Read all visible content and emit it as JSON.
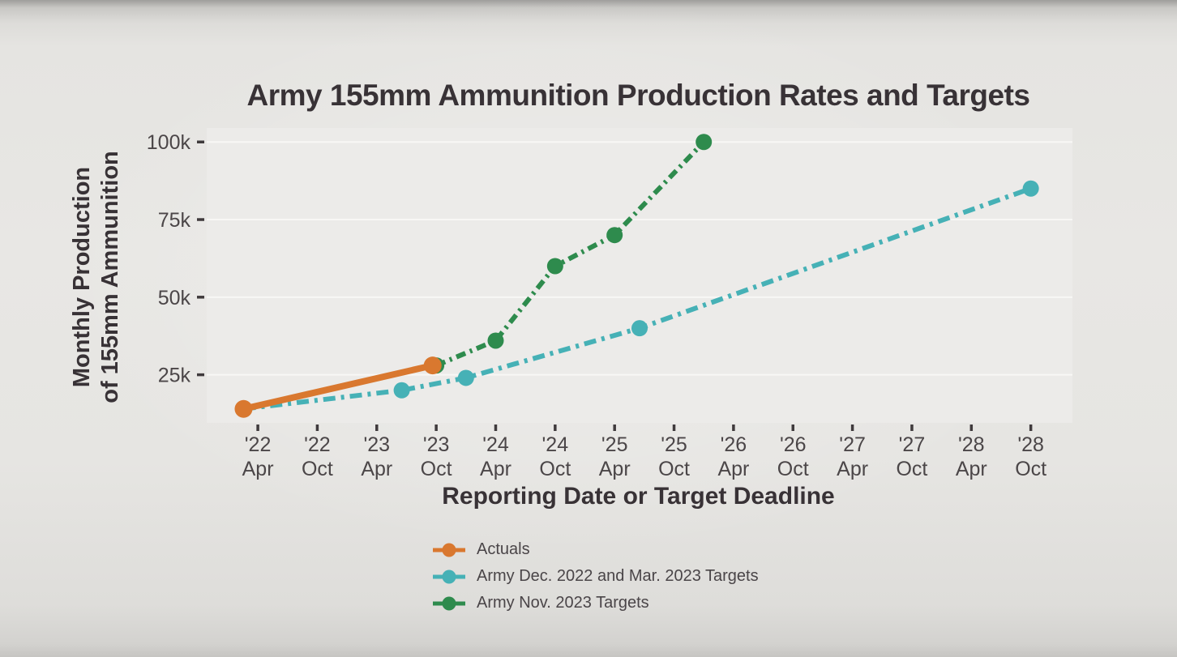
{
  "page": {
    "background_color": "#e8e7e4",
    "plot_background_color": "#ecebe9",
    "gridline_color": "#f8f7f5",
    "text_dark_color": "#383236",
    "tick_text_color": "#4b4648"
  },
  "chart_data": {
    "type": "line",
    "title": "Army 155mm Ammunition Production Rates and Targets",
    "xlabel": "Reporting Date or Target Deadline",
    "ylabel_lines": [
      "Monthly Production",
      "of 155mm Ammunition"
    ],
    "grid": true,
    "legend_position": "bottom-left",
    "xlim": [
      2021.82,
      2029.1
    ],
    "ylim": [
      9500,
      104500
    ],
    "y_ticks": [
      {
        "value": 25000,
        "label": "25k"
      },
      {
        "value": 50000,
        "label": "50k"
      },
      {
        "value": 75000,
        "label": "75k"
      },
      {
        "value": 100000,
        "label": "100k"
      }
    ],
    "x_ticks": [
      {
        "x": 2022.25,
        "year": "'22",
        "month": "Apr"
      },
      {
        "x": 2022.75,
        "year": "'22",
        "month": "Oct"
      },
      {
        "x": 2023.25,
        "year": "'23",
        "month": "Apr"
      },
      {
        "x": 2023.75,
        "year": "'23",
        "month": "Oct"
      },
      {
        "x": 2024.25,
        "year": "'24",
        "month": "Apr"
      },
      {
        "x": 2024.75,
        "year": "'24",
        "month": "Oct"
      },
      {
        "x": 2025.25,
        "year": "'25",
        "month": "Apr"
      },
      {
        "x": 2025.75,
        "year": "'25",
        "month": "Oct"
      },
      {
        "x": 2026.25,
        "year": "'26",
        "month": "Apr"
      },
      {
        "x": 2026.75,
        "year": "'26",
        "month": "Oct"
      },
      {
        "x": 2027.25,
        "year": "'27",
        "month": "Apr"
      },
      {
        "x": 2027.75,
        "year": "'27",
        "month": "Oct"
      },
      {
        "x": 2028.25,
        "year": "'28",
        "month": "Apr"
      },
      {
        "x": 2028.75,
        "year": "'28",
        "month": "Oct"
      }
    ],
    "series": [
      {
        "name": "Actuals",
        "color": "#d9782f",
        "line_style": "solid",
        "points": [
          {
            "x": 2022.13,
            "date": "Feb '22",
            "value": 14000
          },
          {
            "x": 2023.72,
            "date": "Oct '23",
            "value": 28000
          }
        ]
      },
      {
        "name": "Army Dec. 2022 and Mar. 2023 Targets",
        "color": "#46b1b6",
        "line_style": "dashdot",
        "points": [
          {
            "x": 2022.13,
            "date": "Feb '22",
            "value": 14000
          },
          {
            "x": 2023.46,
            "date": "Jun '23",
            "value": 20000
          },
          {
            "x": 2024.0,
            "date": "Jan '24",
            "value": 24000
          },
          {
            "x": 2025.46,
            "date": "Jun '25",
            "value": 40000
          },
          {
            "x": 2028.75,
            "date": "Oct '28",
            "value": 85000
          }
        ]
      },
      {
        "name": "Army Nov. 2023 Targets",
        "color": "#2e8b4d",
        "line_style": "dashed",
        "points": [
          {
            "x": 2023.75,
            "date": "Oct '23",
            "value": 28000
          },
          {
            "x": 2024.25,
            "date": "Apr '24",
            "value": 36000
          },
          {
            "x": 2024.75,
            "date": "Oct '24",
            "value": 60000
          },
          {
            "x": 2025.25,
            "date": "Apr '25",
            "value": 70000
          },
          {
            "x": 2026.0,
            "date": "Jan '26",
            "value": 100000
          }
        ]
      }
    ]
  }
}
